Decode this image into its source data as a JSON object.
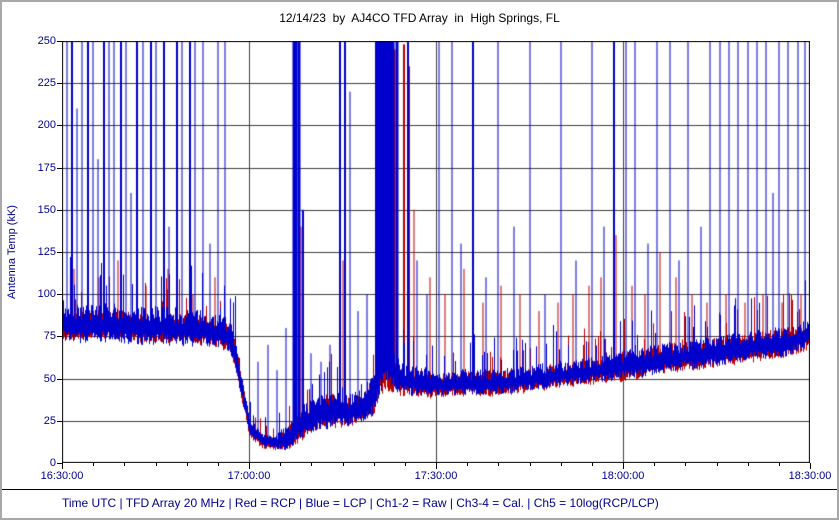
{
  "title": "12/14/23  by  AJ4CO TFD Array  in  High Springs, FL",
  "footer": "Time UTC | TFD Array 20 MHz | Red = RCP | Blue = LCP | Ch1-2 = Raw | Ch3-4 = Cal. | Ch5 = 10log(RCP/LCP)",
  "colors": {
    "rcp": "#bb0000",
    "lcp": "#0000cc",
    "grid": "#404040",
    "frame": "#000000",
    "axis_text": "#00008b",
    "background": "#ffffff"
  },
  "chart_data": {
    "type": "line",
    "title": "12/14/23  by  AJ4CO TFD Array  in  High Springs, FL",
    "xlabel": "Time UTC",
    "ylabel": "Antenna Temp (kK)",
    "ylim": [
      0,
      250
    ],
    "x_start": "16:30:00",
    "x_end": "18:30:00",
    "x_span_minutes": 120,
    "x_ticks": [
      "16:30:00",
      "17:00:00",
      "17:30:00",
      "18:00:00",
      "18:30:00"
    ],
    "x_tick_minutes": [
      0,
      30,
      60,
      90,
      120
    ],
    "x_minor_step_minutes": 5,
    "x_grid_minutes": [
      30,
      60,
      90
    ],
    "y_ticks": [
      0,
      25,
      50,
      75,
      100,
      125,
      150,
      175,
      200,
      225,
      250
    ],
    "grid": true,
    "legend_position": "none",
    "units": "baseline points = [minutes after 16:30 UTC, antenna temp kK, noise amplitude kK]; spikes = [minutes, peak kK, width px]",
    "series": [
      {
        "name": "RCP",
        "legend": "Red = RCP",
        "color": "#bb0000",
        "seed": 7,
        "baseline": [
          [
            0,
            80,
            7
          ],
          [
            4,
            80,
            7
          ],
          [
            8,
            81,
            7
          ],
          [
            12,
            79,
            7
          ],
          [
            16,
            79,
            7
          ],
          [
            20,
            78,
            7
          ],
          [
            24,
            77,
            7
          ],
          [
            27,
            73,
            7
          ],
          [
            28,
            58,
            7
          ],
          [
            30,
            20,
            4
          ],
          [
            32,
            12,
            3
          ],
          [
            34,
            11,
            3
          ],
          [
            36,
            13,
            5
          ],
          [
            38,
            20,
            7
          ],
          [
            40,
            26,
            7
          ],
          [
            42,
            29,
            8
          ],
          [
            44,
            30,
            8
          ],
          [
            46,
            29,
            7
          ],
          [
            48,
            32,
            7
          ],
          [
            50,
            38,
            9
          ],
          [
            51,
            50,
            11
          ],
          [
            52,
            55,
            11
          ],
          [
            53,
            52,
            9
          ],
          [
            54,
            49,
            8
          ],
          [
            56,
            47,
            7
          ],
          [
            58,
            46,
            7
          ],
          [
            60,
            45,
            6
          ],
          [
            64,
            46,
            6
          ],
          [
            68,
            46,
            6
          ],
          [
            72,
            47,
            6
          ],
          [
            76,
            49,
            6
          ],
          [
            80,
            51,
            6
          ],
          [
            84,
            53,
            6
          ],
          [
            88,
            55,
            7
          ],
          [
            92,
            57,
            7
          ],
          [
            96,
            60,
            7
          ],
          [
            100,
            62,
            7
          ],
          [
            104,
            64,
            7
          ],
          [
            108,
            66,
            7
          ],
          [
            112,
            68,
            7
          ],
          [
            116,
            70,
            7
          ],
          [
            120,
            75,
            7
          ]
        ],
        "spikes": [
          [
            2.0,
            115,
            1
          ],
          [
            6.0,
            110,
            1
          ],
          [
            9.0,
            120,
            1
          ],
          [
            13.5,
            105,
            1
          ],
          [
            17.0,
            115,
            1
          ],
          [
            21.0,
            100,
            1
          ],
          [
            24.5,
            110,
            1
          ],
          [
            37.5,
            210,
            2
          ],
          [
            38.3,
            140,
            1
          ],
          [
            45.0,
            120,
            1
          ],
          [
            50.9,
            250,
            3
          ],
          [
            51.7,
            250,
            4
          ],
          [
            52.5,
            250,
            4
          ],
          [
            53.3,
            245,
            3
          ],
          [
            54.9,
            248,
            2
          ],
          [
            55.7,
            235,
            2
          ],
          [
            56.5,
            150,
            1
          ],
          [
            59.0,
            110,
            1
          ],
          [
            61.5,
            100,
            1
          ],
          [
            64.5,
            115,
            1
          ],
          [
            67.5,
            95,
            1
          ],
          [
            70.5,
            105,
            1
          ],
          [
            73.5,
            100,
            1
          ],
          [
            76.5,
            90,
            1
          ],
          [
            79.5,
            95,
            1
          ],
          [
            82.0,
            100,
            1
          ],
          [
            84.5,
            105,
            1
          ],
          [
            86.5,
            110,
            1
          ],
          [
            88.8,
            135,
            1
          ],
          [
            91.5,
            105,
            1
          ],
          [
            93.5,
            100,
            1
          ],
          [
            96.0,
            125,
            1
          ],
          [
            98.5,
            110,
            1
          ],
          [
            101.0,
            100,
            1
          ],
          [
            103.5,
            95,
            1
          ],
          [
            106.5,
            100,
            1
          ],
          [
            109.5,
            95,
            1
          ],
          [
            112.5,
            100,
            1
          ],
          [
            115.5,
            95,
            1
          ],
          [
            118.5,
            100,
            1
          ]
        ]
      },
      {
        "name": "LCP",
        "legend": "Blue = LCP",
        "color": "#0000cc",
        "seed": 13,
        "baseline": [
          [
            0,
            82,
            9
          ],
          [
            4,
            81,
            9
          ],
          [
            8,
            82,
            9
          ],
          [
            12,
            80,
            9
          ],
          [
            16,
            80,
            9
          ],
          [
            20,
            79,
            9
          ],
          [
            24,
            78,
            8
          ],
          [
            27,
            74,
            8
          ],
          [
            28,
            60,
            8
          ],
          [
            30,
            22,
            5
          ],
          [
            32,
            13,
            3
          ],
          [
            34,
            12,
            3
          ],
          [
            36,
            14,
            6
          ],
          [
            38,
            22,
            8
          ],
          [
            40,
            27,
            8
          ],
          [
            42,
            30,
            9
          ],
          [
            44,
            31,
            9
          ],
          [
            46,
            30,
            8
          ],
          [
            48,
            33,
            8
          ],
          [
            50,
            40,
            10
          ],
          [
            51,
            55,
            12
          ],
          [
            52,
            60,
            12
          ],
          [
            53,
            55,
            10
          ],
          [
            54,
            50,
            8
          ],
          [
            56,
            48,
            7
          ],
          [
            58,
            47,
            7
          ],
          [
            60,
            46,
            6
          ],
          [
            64,
            47,
            6
          ],
          [
            68,
            47,
            6
          ],
          [
            72,
            48,
            6
          ],
          [
            76,
            50,
            6
          ],
          [
            80,
            52,
            6
          ],
          [
            84,
            54,
            6
          ],
          [
            88,
            56,
            7
          ],
          [
            92,
            58,
            7
          ],
          [
            96,
            61,
            7
          ],
          [
            100,
            63,
            7
          ],
          [
            104,
            65,
            7
          ],
          [
            108,
            67,
            7
          ],
          [
            112,
            69,
            7
          ],
          [
            116,
            71,
            7
          ],
          [
            120,
            76,
            7
          ]
        ],
        "spikes": [
          [
            0.8,
            250,
            1
          ],
          [
            1.6,
            250,
            2
          ],
          [
            2.4,
            210,
            1
          ],
          [
            3.2,
            250,
            1
          ],
          [
            4.1,
            250,
            2
          ],
          [
            5.0,
            250,
            1
          ],
          [
            5.8,
            180,
            1
          ],
          [
            6.7,
            250,
            2
          ],
          [
            7.5,
            250,
            1
          ],
          [
            8.3,
            250,
            1
          ],
          [
            9.4,
            250,
            2
          ],
          [
            10.2,
            250,
            1
          ],
          [
            11.0,
            160,
            1
          ],
          [
            12.1,
            250,
            2
          ],
          [
            13.0,
            250,
            1
          ],
          [
            14.2,
            250,
            2
          ],
          [
            15.1,
            250,
            1
          ],
          [
            16.3,
            250,
            2
          ],
          [
            17.2,
            140,
            1
          ],
          [
            18.4,
            250,
            2
          ],
          [
            19.3,
            250,
            1
          ],
          [
            20.5,
            250,
            2
          ],
          [
            21.4,
            250,
            1
          ],
          [
            22.6,
            250,
            1
          ],
          [
            23.8,
            130,
            1
          ],
          [
            25.0,
            250,
            1
          ],
          [
            26.2,
            250,
            1
          ],
          [
            31.5,
            60,
            1
          ],
          [
            33.0,
            70,
            1
          ],
          [
            34.5,
            55,
            1
          ],
          [
            36.0,
            80,
            1
          ],
          [
            37.3,
            250,
            5
          ],
          [
            38.0,
            250,
            3
          ],
          [
            38.7,
            150,
            2
          ],
          [
            40.0,
            65,
            1
          ],
          [
            41.5,
            60,
            1
          ],
          [
            43.0,
            70,
            1
          ],
          [
            44.6,
            250,
            2
          ],
          [
            45.4,
            250,
            2
          ],
          [
            46.2,
            220,
            1
          ],
          [
            47.5,
            90,
            1
          ],
          [
            49.0,
            100,
            1
          ],
          [
            50.6,
            250,
            4
          ],
          [
            51.4,
            250,
            6
          ],
          [
            52.2,
            250,
            7
          ],
          [
            53.0,
            250,
            5
          ],
          [
            53.8,
            250,
            3
          ],
          [
            55.5,
            250,
            2
          ],
          [
            57.0,
            120,
            1
          ],
          [
            58.5,
            100,
            1
          ],
          [
            60.5,
            250,
            1
          ],
          [
            62.5,
            250,
            1
          ],
          [
            64.0,
            130,
            1
          ],
          [
            66.0,
            250,
            2
          ],
          [
            68.0,
            110,
            1
          ],
          [
            70.0,
            250,
            1
          ],
          [
            72.5,
            140,
            1
          ],
          [
            75.0,
            250,
            1
          ],
          [
            77.5,
            100,
            1
          ],
          [
            80.0,
            250,
            1
          ],
          [
            82.5,
            120,
            1
          ],
          [
            85.0,
            250,
            1
          ],
          [
            87.0,
            140,
            1
          ],
          [
            88.5,
            250,
            2
          ],
          [
            90.5,
            250,
            1
          ],
          [
            92.0,
            250,
            1
          ],
          [
            94.0,
            130,
            1
          ],
          [
            95.5,
            250,
            1
          ],
          [
            97.5,
            250,
            1
          ],
          [
            99.0,
            120,
            1
          ],
          [
            100.5,
            250,
            1
          ],
          [
            102.5,
            140,
            1
          ],
          [
            104.0,
            250,
            1
          ],
          [
            105.5,
            250,
            1
          ],
          [
            107.0,
            250,
            1
          ],
          [
            108.5,
            250,
            1
          ],
          [
            110.0,
            250,
            1
          ],
          [
            111.5,
            250,
            1
          ],
          [
            113.0,
            250,
            1
          ],
          [
            114.0,
            160,
            1
          ],
          [
            115.0,
            250,
            1
          ],
          [
            116.5,
            250,
            1
          ],
          [
            118.0,
            250,
            1
          ],
          [
            119.2,
            250,
            1
          ],
          [
            120.0,
            180,
            1
          ]
        ]
      }
    ]
  }
}
